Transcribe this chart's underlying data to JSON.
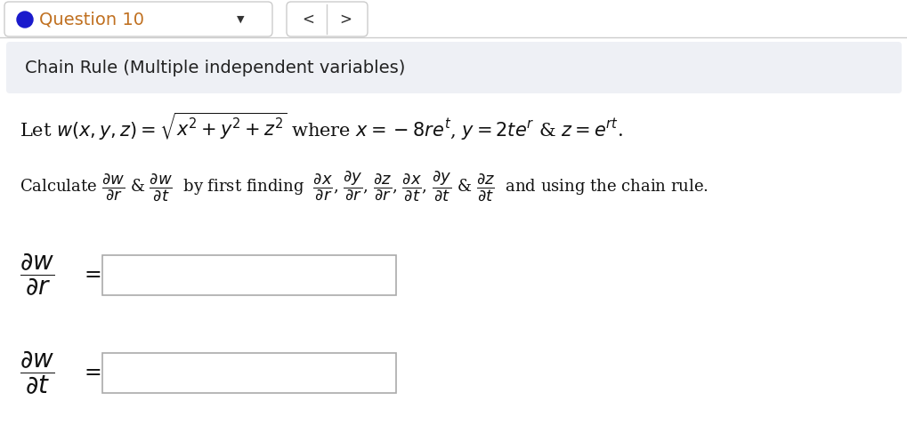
{
  "bg_color": "#ffffff",
  "header_bg": "#eef0f5",
  "header_text": "Chain Rule (Multiple independent variables)",
  "question_label": "Question 10",
  "dot_color": "#1a1acc",
  "separator_color": "#cccccc",
  "input_box_color": "#ffffff",
  "input_box_edge": "#aaaaaa",
  "section_bg": "#eef0f5",
  "q_text_color": "#c07020",
  "body_color": "#111111",
  "title_fontsize": 13,
  "math_fontsize": 15,
  "calc_fontsize": 13,
  "small_fontsize": 11
}
